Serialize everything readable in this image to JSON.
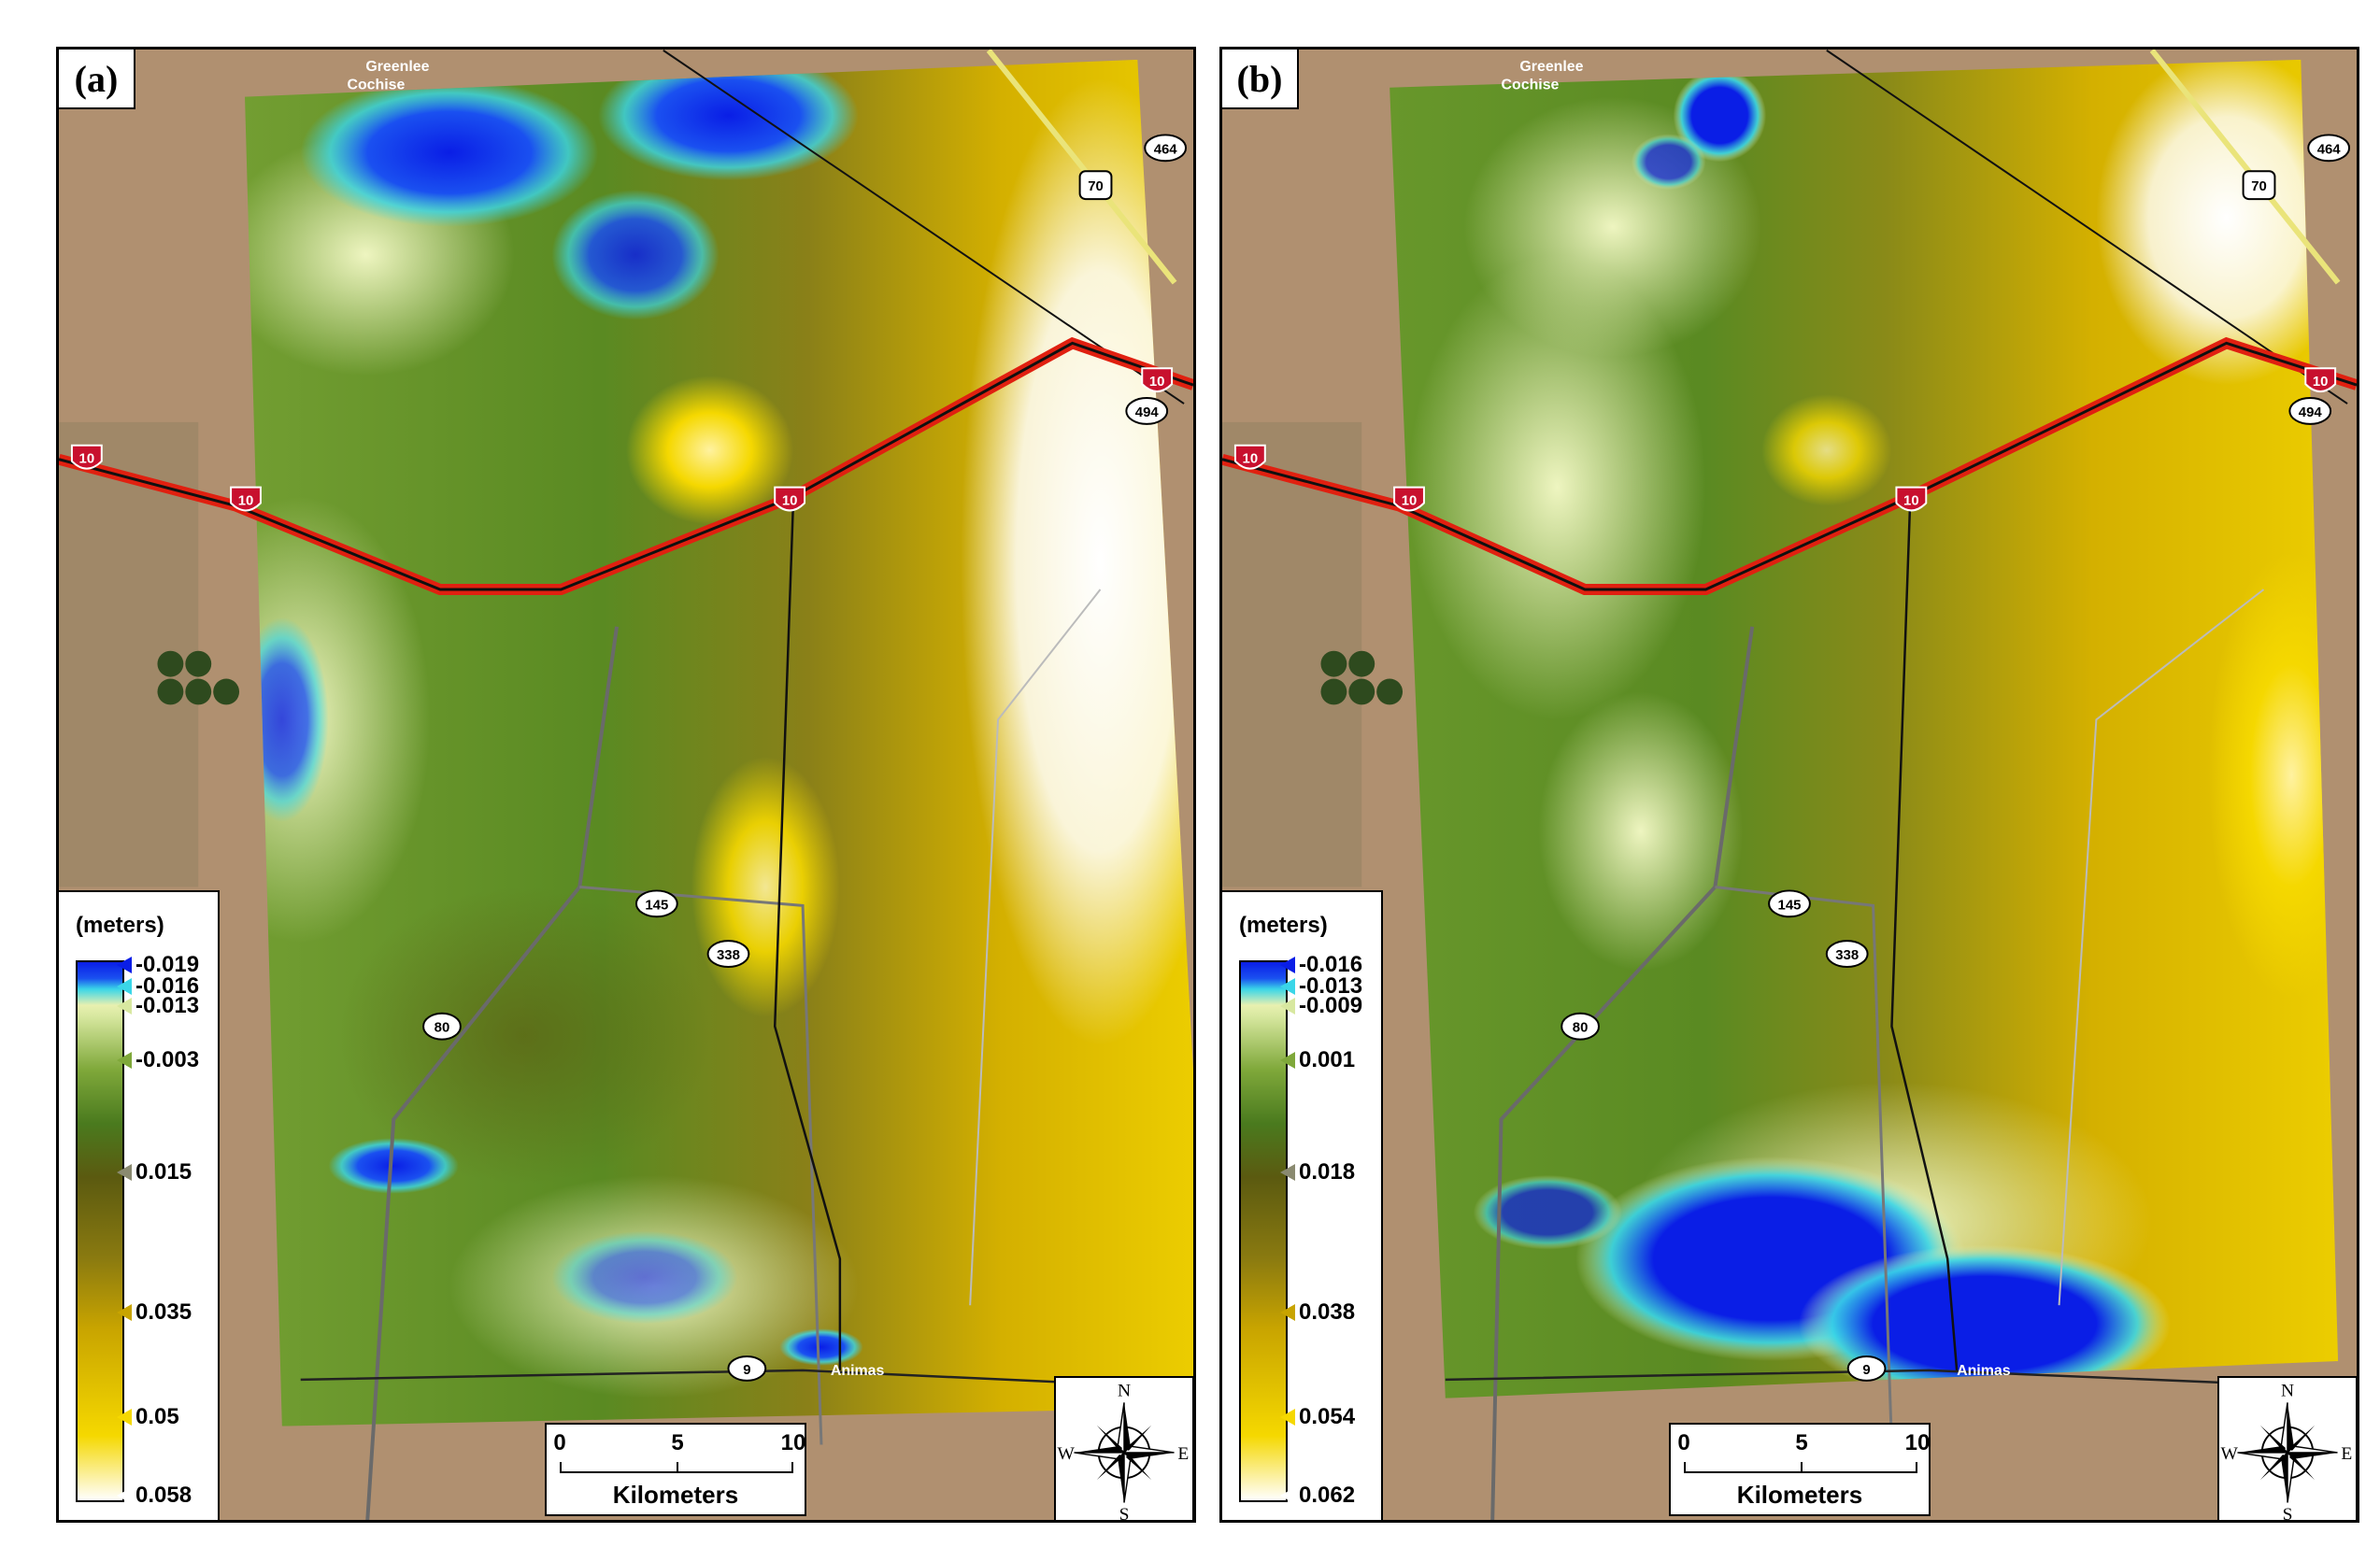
{
  "panels": [
    {
      "label": "(a)",
      "legend": {
        "title": "(meters)",
        "ticks": [
          "-0.019",
          "-0.016",
          "-0.013",
          "-0.003",
          "0.015",
          "0.035",
          "0.05",
          "0.058"
        ]
      },
      "scalebar": {
        "ticks": [
          "0",
          "5",
          "10"
        ],
        "units": "Kilometers"
      },
      "compass": {
        "n": "N",
        "s": "S",
        "e": "E",
        "w": "W"
      }
    },
    {
      "label": "(b)",
      "legend": {
        "title": "(meters)",
        "ticks": [
          "-0.016",
          "-0.013",
          "-0.009",
          "0.001",
          "0.018",
          "0.038",
          "0.054",
          "0.062"
        ]
      },
      "scalebar": {
        "ticks": [
          "0",
          "5",
          "10"
        ],
        "units": "Kilometers"
      },
      "compass": {
        "n": "N",
        "s": "S",
        "e": "E",
        "w": "W"
      }
    }
  ],
  "map_labels": {
    "interstate": "10",
    "route_70": "70",
    "route_80": "80",
    "route_145": "145",
    "route_338": "338",
    "route_9": "9",
    "route_464": "464",
    "route_494": "494",
    "place_animas": "Animas",
    "place_cochise": "Cochise",
    "place_greenlee": "Greenlee"
  },
  "colors": {
    "subsidence_blue": "#0a1ee6",
    "cyan": "#3ad6e8",
    "pale": "#e8f0b0",
    "green": "#5a8a22",
    "dark_olive": "#5b5a10",
    "gold": "#d4a800",
    "yellow": "#f5d800",
    "white": "#ffffff",
    "interstate_red": "#e02010",
    "terrain": "#b09070"
  }
}
